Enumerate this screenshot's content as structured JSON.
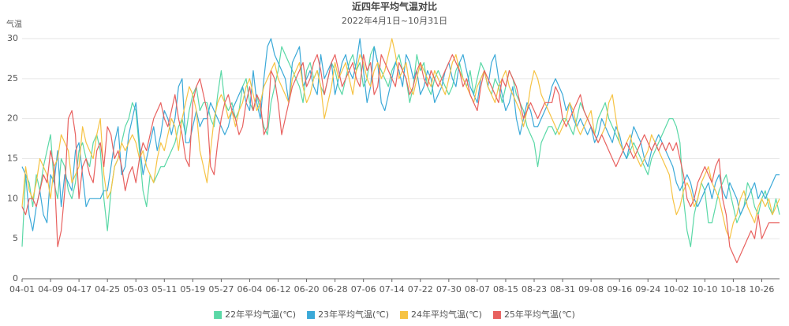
{
  "chart_data": {
    "type": "line",
    "title": "近四年平均气温对比",
    "subtitle": "2022年4月1日~10月31日",
    "y_label": "气温",
    "categories": [
      "04-01",
      null,
      null,
      null,
      null,
      null,
      null,
      null,
      "04-09",
      null,
      null,
      null,
      null,
      null,
      null,
      null,
      "04-17",
      null,
      null,
      null,
      null,
      null,
      null,
      null,
      "04-25",
      null,
      null,
      null,
      null,
      null,
      null,
      null,
      "05-03",
      null,
      null,
      null,
      null,
      null,
      null,
      null,
      "05-11",
      null,
      null,
      null,
      null,
      null,
      null,
      null,
      "05-19",
      null,
      null,
      null,
      null,
      null,
      null,
      null,
      "05-27",
      null,
      null,
      null,
      null,
      null,
      null,
      null,
      "06-04",
      null,
      null,
      null,
      null,
      null,
      null,
      null,
      "06-12",
      null,
      null,
      null,
      null,
      null,
      null,
      null,
      "06-20",
      null,
      null,
      null,
      null,
      null,
      null,
      null,
      "06-28",
      null,
      null,
      null,
      null,
      null,
      null,
      null,
      "07-06",
      null,
      null,
      null,
      null,
      null,
      null,
      null,
      "07-14",
      null,
      null,
      null,
      null,
      null,
      null,
      null,
      "07-22",
      null,
      null,
      null,
      null,
      null,
      null,
      null,
      "07-30",
      null,
      null,
      null,
      null,
      null,
      null,
      null,
      "08-07",
      null,
      null,
      null,
      null,
      null,
      null,
      null,
      "08-15",
      null,
      null,
      null,
      null,
      null,
      null,
      null,
      "08-23",
      null,
      null,
      null,
      null,
      null,
      null,
      null,
      "08-31",
      null,
      null,
      null,
      null,
      null,
      null,
      null,
      "09-08",
      null,
      null,
      null,
      null,
      null,
      null,
      null,
      "09-16",
      null,
      null,
      null,
      null,
      null,
      null,
      null,
      "09-24",
      null,
      null,
      null,
      null,
      null,
      null,
      null,
      "10-02",
      null,
      null,
      null,
      null,
      null,
      null,
      null,
      "10-10",
      null,
      null,
      null,
      null,
      null,
      null,
      null,
      "10-18",
      null,
      null,
      null,
      null,
      null,
      null,
      null,
      "10-26",
      null,
      null,
      null,
      null,
      null
    ],
    "series": [
      {
        "name": "22年平均气温(℃)",
        "color": "#5ad8a6",
        "values": [
          4,
          13,
          12,
          9,
          13,
          11,
          14,
          16,
          18,
          12,
          10,
          15,
          14,
          11,
          10,
          12,
          16,
          17,
          15,
          14,
          17,
          18,
          16,
          10,
          6,
          11,
          14,
          15,
          17,
          19,
          20,
          22,
          21,
          16,
          11,
          9,
          13,
          12,
          13,
          14,
          14,
          15,
          16,
          17,
          19,
          20,
          18,
          21,
          23,
          24,
          21,
          22,
          22,
          20,
          19,
          23,
          26,
          22,
          21,
          22,
          20,
          21,
          24,
          25,
          22,
          21,
          23,
          21,
          19,
          18,
          22,
          24,
          26,
          29,
          28,
          27,
          26,
          25,
          24,
          22,
          26,
          27,
          25,
          26,
          24,
          23,
          25,
          27,
          26,
          24,
          23,
          25,
          27,
          28,
          26,
          27,
          24,
          25,
          28,
          29,
          27,
          26,
          25,
          24,
          26,
          27,
          28,
          26,
          25,
          22,
          24,
          28,
          26,
          27,
          24,
          23,
          25,
          26,
          25,
          24,
          23,
          24,
          26,
          27,
          25,
          24,
          26,
          23,
          25,
          27,
          26,
          24,
          23,
          25,
          24,
          22,
          24,
          26,
          25,
          23,
          22,
          21,
          19,
          18,
          17,
          14,
          17,
          18,
          19,
          19,
          18,
          19,
          20,
          20,
          19,
          18,
          20,
          22,
          21,
          20,
          19,
          18,
          20,
          21,
          22,
          20,
          19,
          18,
          17,
          16,
          15,
          16,
          17,
          16,
          15,
          14,
          13,
          15,
          16,
          17,
          18,
          19,
          20,
          20,
          19,
          17,
          10,
          6,
          4,
          8,
          10,
          12,
          11,
          7,
          7,
          9,
          11,
          12,
          13,
          11,
          9,
          7,
          8,
          9,
          12,
          11,
          9,
          8,
          10,
          11,
          9,
          8,
          10,
          8
        ]
      },
      {
        "name": "23年平均气温(℃)",
        "color": "#3ba9d8",
        "values": [
          14,
          13,
          8,
          6,
          9,
          11,
          8,
          7,
          13,
          12,
          16,
          9,
          13,
          12,
          11,
          16,
          17,
          13,
          9,
          10,
          10,
          10,
          10,
          11,
          11,
          14,
          17,
          19,
          13,
          14,
          18,
          20,
          22,
          17,
          13,
          15,
          17,
          19,
          16,
          18,
          21,
          20,
          18,
          20,
          24,
          25,
          17,
          17,
          19,
          21,
          19,
          20,
          20,
          22,
          21,
          20,
          19,
          18,
          19,
          21,
          22,
          23,
          24,
          22,
          21,
          26,
          22,
          20,
          25,
          29,
          30,
          28,
          27,
          26,
          25,
          22,
          27,
          28,
          29,
          24,
          25,
          26,
          24,
          23,
          28,
          25,
          26,
          27,
          23,
          25,
          27,
          28,
          26,
          25,
          27,
          30,
          26,
          22,
          24,
          29,
          27,
          22,
          21,
          23,
          25,
          27,
          26,
          24,
          28,
          27,
          25,
          26,
          23,
          24,
          26,
          25,
          22,
          23,
          24,
          26,
          27,
          25,
          24,
          27,
          28,
          26,
          24,
          23,
          22,
          25,
          26,
          24,
          27,
          28,
          25,
          23,
          21,
          22,
          24,
          20,
          18,
          20,
          22,
          21,
          19,
          19,
          20,
          21,
          22,
          24,
          25,
          24,
          23,
          21,
          22,
          20,
          19,
          20,
          19,
          18,
          19,
          17,
          18,
          20,
          19,
          18,
          17,
          19,
          18,
          16,
          15,
          17,
          19,
          18,
          17,
          15,
          14,
          16,
          17,
          18,
          17,
          16,
          15,
          14,
          12,
          11,
          12,
          13,
          12,
          10,
          9,
          10,
          11,
          12,
          10,
          12,
          13,
          11,
          10,
          12,
          11,
          10,
          8,
          9,
          10,
          11,
          12,
          10,
          11,
          10,
          11,
          12,
          13,
          13
        ]
      },
      {
        "name": "24年平均气温(℃)",
        "color": "#f6c344",
        "values": [
          9,
          14,
          11,
          10,
          12,
          15,
          14,
          13,
          10,
          14,
          15,
          18,
          17,
          16,
          12,
          13,
          14,
          19,
          17,
          16,
          15,
          18,
          20,
          13,
          10,
          11,
          14,
          15,
          17,
          16,
          17,
          18,
          17,
          15,
          16,
          14,
          13,
          12,
          15,
          17,
          16,
          18,
          20,
          19,
          16,
          20,
          22,
          24,
          23,
          21,
          16,
          14,
          12,
          16,
          20,
          22,
          23,
          22,
          20,
          21,
          19,
          21,
          22,
          24,
          25,
          23,
          21,
          22,
          24,
          25,
          26,
          27,
          25,
          24,
          23,
          22,
          25,
          26,
          27,
          24,
          22,
          23,
          25,
          26,
          24,
          20,
          22,
          24,
          27,
          25,
          26,
          27,
          25,
          23,
          26,
          28,
          27,
          25,
          24,
          26,
          27,
          25,
          26,
          28,
          30,
          28,
          25,
          26,
          27,
          24,
          23,
          25,
          27,
          26,
          25,
          24,
          26,
          25,
          24,
          23,
          25,
          27,
          28,
          26,
          25,
          24,
          23,
          22,
          24,
          25,
          26,
          24,
          23,
          22,
          24,
          25,
          26,
          24,
          23,
          22,
          21,
          19,
          21,
          24,
          26,
          25,
          23,
          22,
          21,
          20,
          19,
          18,
          19,
          20,
          22,
          21,
          19,
          18,
          19,
          20,
          21,
          18,
          17,
          18,
          19,
          22,
          23,
          20,
          17,
          16,
          17,
          18,
          16,
          15,
          14,
          15,
          16,
          18,
          17,
          16,
          15,
          14,
          13,
          10,
          8,
          9,
          11,
          12,
          11,
          9,
          10,
          12,
          13,
          14,
          12,
          11,
          10,
          8,
          6,
          5,
          7,
          8,
          10,
          11,
          9,
          8,
          7,
          9,
          10,
          9,
          10,
          8,
          9,
          10
        ]
      },
      {
        "name": "25年平均气温(℃)",
        "color": "#e8615f",
        "values": [
          9,
          8,
          10,
          10,
          9,
          11,
          13,
          12,
          16,
          14,
          4,
          6,
          11,
          20,
          21,
          18,
          10,
          14,
          15,
          13,
          12,
          16,
          17,
          14,
          19,
          18,
          15,
          16,
          14,
          11,
          13,
          14,
          12,
          15,
          17,
          16,
          18,
          20,
          21,
          22,
          20,
          19,
          21,
          23,
          20,
          18,
          15,
          14,
          22,
          24,
          25,
          23,
          21,
          14,
          13,
          17,
          20,
          22,
          23,
          21,
          20,
          18,
          19,
          22,
          24,
          21,
          23,
          22,
          18,
          19,
          26,
          25,
          22,
          18,
          20,
          22,
          24,
          25,
          26,
          27,
          24,
          25,
          27,
          28,
          26,
          23,
          25,
          27,
          28,
          26,
          24,
          25,
          26,
          27,
          25,
          24,
          28,
          26,
          27,
          23,
          24,
          28,
          27,
          26,
          25,
          24,
          27,
          26,
          25,
          23,
          24,
          26,
          27,
          25,
          24,
          26,
          25,
          24,
          25,
          26,
          27,
          28,
          27,
          26,
          24,
          25,
          23,
          22,
          21,
          24,
          26,
          25,
          24,
          23,
          22,
          25,
          24,
          26,
          25,
          24,
          22,
          20,
          21,
          22,
          21,
          20,
          21,
          22,
          22,
          22,
          24,
          23,
          20,
          19,
          20,
          21,
          22,
          23,
          21,
          20,
          19,
          18,
          17,
          18,
          17,
          16,
          15,
          14,
          15,
          16,
          17,
          16,
          15,
          16,
          17,
          18,
          17,
          16,
          17,
          16,
          17,
          16,
          17,
          16,
          17,
          15,
          13,
          10,
          9,
          10,
          12,
          13,
          14,
          13,
          12,
          14,
          15,
          10,
          8,
          4,
          3,
          2,
          3,
          4,
          5,
          6,
          5,
          8,
          5,
          6,
          7,
          7,
          7,
          7
        ]
      }
    ],
    "ylim": [
      0,
      30
    ],
    "yticks": [
      0,
      5,
      10,
      15,
      20,
      25,
      30
    ],
    "grid": true,
    "legend": "bottom"
  }
}
